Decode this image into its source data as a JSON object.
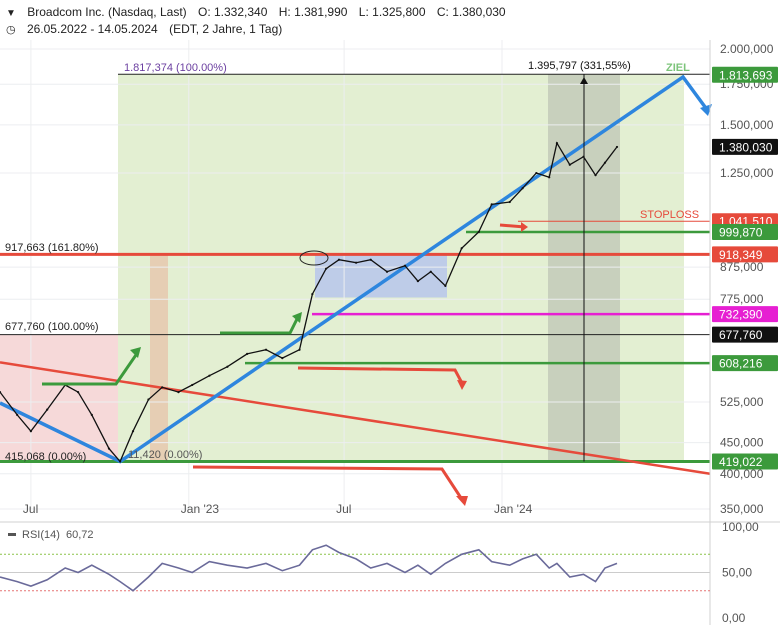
{
  "header": {
    "title": "Broadcom Inc. (Nasdaq, Last)",
    "ohlc": {
      "o": "O: 1.332,340",
      "h": "H: 1.381,990",
      "l": "L: 1.325,800",
      "c": "C: 1.380,030"
    },
    "range": "26.05.2022 - 14.05.2024",
    "info": "(EDT, 2 Jahre, 1 Tag)"
  },
  "colors": {
    "green_zone": "#e3efd2",
    "red_zone": "#f6d9d9",
    "grey_zone": "#bfc6b6",
    "blue_box": "#b9c8ea",
    "blue_line": "#2e86de",
    "red": "#e64a3b",
    "green": "#3c9a3c",
    "magenta": "#e61fd2",
    "black": "#111111",
    "rsi": "#6a6a9a"
  },
  "annotations": {
    "fib_top": "1.817,374 (100.00%)",
    "fib_1618": "917,663 (161.80%)",
    "fib_100": "677,760 (100.00%)",
    "fib_0": "415,068 (0.00%)",
    "fib_0b": "11,420 (0.00%)",
    "gain": "1.395,797 (331,55%)",
    "ziel": "ZIEL",
    "stoploss": "STOPLOSS"
  },
  "chart_data": {
    "type": "line",
    "title": "Broadcom Inc. (Nasdaq, Last)",
    "xlabel": "",
    "ylabel": "",
    "x_ticks": [
      "Jul",
      "Jan '23",
      "Jul",
      "Jan '24"
    ],
    "y_ticks": [
      "2.000,000",
      "1.750,000",
      "1.500,000",
      "1.250,000",
      "875,000",
      "775,000",
      "525,000",
      "450,000",
      "400,000",
      "350,000"
    ],
    "price_tags": [
      {
        "label": "1.813,693",
        "value": 1813.693,
        "color": "#3c9a3c"
      },
      {
        "label": "1.380,030",
        "value": 1380.03,
        "color": "#111111"
      },
      {
        "label": "1.041,510",
        "value": 1041.51,
        "color": "#e64a3b"
      },
      {
        "label": "999,870",
        "value": 999.87,
        "color": "#3c9a3c"
      },
      {
        "label": "918,349",
        "value": 918.349,
        "color": "#e64a3b"
      },
      {
        "label": "732,390",
        "value": 732.39,
        "color": "#e61fd2"
      },
      {
        "label": "677,760",
        "value": 677.76,
        "color": "#111111"
      },
      {
        "label": "608,216",
        "value": 608.216,
        "color": "#3c9a3c"
      },
      {
        "label": "419,022",
        "value": 419.022,
        "color": "#3c9a3c"
      }
    ],
    "series": [
      {
        "name": "Broadcom Inc. (Nasdaq, Last)",
        "points": [
          [
            "2022-05-26",
            545
          ],
          [
            "2022-06-15",
            500
          ],
          [
            "2022-07-01",
            470
          ],
          [
            "2022-07-20",
            510
          ],
          [
            "2022-08-10",
            560
          ],
          [
            "2022-08-25",
            545
          ],
          [
            "2022-09-10",
            500
          ],
          [
            "2022-09-30",
            440
          ],
          [
            "2022-10-13",
            419
          ],
          [
            "2022-10-28",
            470
          ],
          [
            "2022-11-15",
            530
          ],
          [
            "2022-12-01",
            555
          ],
          [
            "2022-12-20",
            545
          ],
          [
            "2023-01-05",
            560
          ],
          [
            "2023-01-25",
            580
          ],
          [
            "2023-02-15",
            600
          ],
          [
            "2023-03-10",
            630
          ],
          [
            "2023-04-01",
            640
          ],
          [
            "2023-04-20",
            620
          ],
          [
            "2023-05-10",
            640
          ],
          [
            "2023-05-25",
            790
          ],
          [
            "2023-06-10",
            870
          ],
          [
            "2023-06-25",
            900
          ],
          [
            "2023-07-15",
            890
          ],
          [
            "2023-08-01",
            900
          ],
          [
            "2023-08-20",
            860
          ],
          [
            "2023-09-10",
            880
          ],
          [
            "2023-09-25",
            830
          ],
          [
            "2023-10-10",
            860
          ],
          [
            "2023-10-27",
            815
          ],
          [
            "2023-11-15",
            940
          ],
          [
            "2023-12-05",
            1000
          ],
          [
            "2023-12-20",
            1110
          ],
          [
            "2024-01-10",
            1120
          ],
          [
            "2024-01-25",
            1180
          ],
          [
            "2024-02-10",
            1250
          ],
          [
            "2024-02-25",
            1230
          ],
          [
            "2024-03-05",
            1400
          ],
          [
            "2024-03-20",
            1290
          ],
          [
            "2024-04-05",
            1330
          ],
          [
            "2024-04-19",
            1240
          ],
          [
            "2024-04-30",
            1300
          ],
          [
            "2024-05-14",
            1380
          ]
        ]
      }
    ],
    "rsi": {
      "name": "RSI(14)",
      "value_label": "60,72",
      "y_ticks": [
        "100,00",
        "50,00",
        "0,00"
      ],
      "values": [
        45,
        40,
        35,
        42,
        55,
        50,
        58,
        48,
        40,
        30,
        45,
        60,
        55,
        50,
        62,
        58,
        55,
        60,
        52,
        58,
        75,
        80,
        72,
        65,
        55,
        60,
        50,
        58,
        48,
        60,
        70,
        75,
        62,
        58,
        65,
        70,
        55,
        60,
        45,
        48,
        40,
        55,
        60
      ]
    },
    "levels": [
      1813.693,
      1041.51,
      999.87,
      918.349,
      732.39,
      677.76,
      608.216,
      419.022
    ],
    "ziel_label": "ZIEL"
  }
}
